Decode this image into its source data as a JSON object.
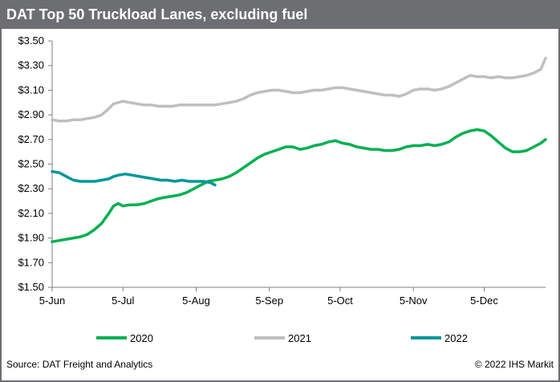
{
  "title": "DAT Top 50 Truckload Lanes, excluding fuel",
  "source": "Source: DAT Freight and Analytics",
  "copyright": "© 2022 IHS Markit",
  "chart_data": {
    "type": "line",
    "x_ticks": [
      "5-Jun",
      "5-Jul",
      "5-Aug",
      "5-Sep",
      "5-Oct",
      "5-Nov",
      "5-Dec"
    ],
    "y_ticks": [
      "$3.50",
      "$3.30",
      "$3.10",
      "$2.90",
      "$2.70",
      "$2.50",
      "$2.30",
      "$2.10",
      "$1.90",
      "$1.70",
      "$1.50"
    ],
    "ylim": [
      1.5,
      3.5
    ],
    "xlim": [
      "06-05",
      "12-31"
    ],
    "grid": false,
    "legend_position": "bottom",
    "series": [
      {
        "name": "2020",
        "color": "#00b050",
        "points": [
          [
            "06-05",
            1.87
          ],
          [
            "06-08",
            1.88
          ],
          [
            "06-11",
            1.89
          ],
          [
            "06-14",
            1.9
          ],
          [
            "06-17",
            1.91
          ],
          [
            "06-20",
            1.93
          ],
          [
            "06-23",
            1.97
          ],
          [
            "06-26",
            2.02
          ],
          [
            "06-29",
            2.1
          ],
          [
            "07-01",
            2.16
          ],
          [
            "07-03",
            2.18
          ],
          [
            "07-05",
            2.16
          ],
          [
            "07-08",
            2.17
          ],
          [
            "07-11",
            2.17
          ],
          [
            "07-14",
            2.18
          ],
          [
            "07-17",
            2.2
          ],
          [
            "07-20",
            2.22
          ],
          [
            "07-23",
            2.23
          ],
          [
            "07-26",
            2.24
          ],
          [
            "07-29",
            2.25
          ],
          [
            "08-01",
            2.27
          ],
          [
            "08-04",
            2.3
          ],
          [
            "08-07",
            2.33
          ],
          [
            "08-10",
            2.36
          ],
          [
            "08-13",
            2.37
          ],
          [
            "08-16",
            2.38
          ],
          [
            "08-19",
            2.4
          ],
          [
            "08-22",
            2.43
          ],
          [
            "08-25",
            2.47
          ],
          [
            "08-28",
            2.51
          ],
          [
            "08-31",
            2.55
          ],
          [
            "09-03",
            2.58
          ],
          [
            "09-06",
            2.6
          ],
          [
            "09-09",
            2.62
          ],
          [
            "09-12",
            2.64
          ],
          [
            "09-15",
            2.64
          ],
          [
            "09-18",
            2.62
          ],
          [
            "09-21",
            2.63
          ],
          [
            "09-24",
            2.65
          ],
          [
            "09-27",
            2.66
          ],
          [
            "09-30",
            2.68
          ],
          [
            "10-03",
            2.69
          ],
          [
            "10-06",
            2.67
          ],
          [
            "10-09",
            2.66
          ],
          [
            "10-12",
            2.64
          ],
          [
            "10-15",
            2.63
          ],
          [
            "10-18",
            2.62
          ],
          [
            "10-21",
            2.62
          ],
          [
            "10-24",
            2.61
          ],
          [
            "10-27",
            2.61
          ],
          [
            "10-30",
            2.62
          ],
          [
            "11-02",
            2.64
          ],
          [
            "11-05",
            2.65
          ],
          [
            "11-08",
            2.65
          ],
          [
            "11-11",
            2.66
          ],
          [
            "11-14",
            2.65
          ],
          [
            "11-17",
            2.66
          ],
          [
            "11-20",
            2.68
          ],
          [
            "11-23",
            2.72
          ],
          [
            "11-26",
            2.75
          ],
          [
            "11-29",
            2.77
          ],
          [
            "12-02",
            2.78
          ],
          [
            "12-05",
            2.77
          ],
          [
            "12-08",
            2.73
          ],
          [
            "12-11",
            2.68
          ],
          [
            "12-14",
            2.63
          ],
          [
            "12-17",
            2.6
          ],
          [
            "12-20",
            2.6
          ],
          [
            "12-23",
            2.61
          ],
          [
            "12-26",
            2.64
          ],
          [
            "12-29",
            2.67
          ],
          [
            "12-31",
            2.7
          ]
        ]
      },
      {
        "name": "2021",
        "color": "#bfbfbf",
        "points": [
          [
            "06-05",
            2.86
          ],
          [
            "06-08",
            2.85
          ],
          [
            "06-11",
            2.85
          ],
          [
            "06-14",
            2.86
          ],
          [
            "06-17",
            2.86
          ],
          [
            "06-20",
            2.87
          ],
          [
            "06-23",
            2.88
          ],
          [
            "06-26",
            2.9
          ],
          [
            "06-29",
            2.95
          ],
          [
            "07-01",
            2.99
          ],
          [
            "07-03",
            3.0
          ],
          [
            "07-05",
            3.01
          ],
          [
            "07-08",
            3.0
          ],
          [
            "07-11",
            2.99
          ],
          [
            "07-14",
            2.98
          ],
          [
            "07-17",
            2.98
          ],
          [
            "07-20",
            2.97
          ],
          [
            "07-23",
            2.97
          ],
          [
            "07-26",
            2.97
          ],
          [
            "07-29",
            2.98
          ],
          [
            "08-01",
            2.98
          ],
          [
            "08-04",
            2.98
          ],
          [
            "08-07",
            2.98
          ],
          [
            "08-10",
            2.98
          ],
          [
            "08-13",
            2.98
          ],
          [
            "08-16",
            2.99
          ],
          [
            "08-19",
            3.0
          ],
          [
            "08-22",
            3.01
          ],
          [
            "08-25",
            3.03
          ],
          [
            "08-28",
            3.06
          ],
          [
            "08-31",
            3.08
          ],
          [
            "09-03",
            3.09
          ],
          [
            "09-06",
            3.1
          ],
          [
            "09-09",
            3.1
          ],
          [
            "09-12",
            3.09
          ],
          [
            "09-15",
            3.08
          ],
          [
            "09-18",
            3.08
          ],
          [
            "09-21",
            3.09
          ],
          [
            "09-24",
            3.1
          ],
          [
            "09-27",
            3.1
          ],
          [
            "09-30",
            3.11
          ],
          [
            "10-03",
            3.12
          ],
          [
            "10-06",
            3.12
          ],
          [
            "10-09",
            3.11
          ],
          [
            "10-12",
            3.1
          ],
          [
            "10-15",
            3.09
          ],
          [
            "10-18",
            3.08
          ],
          [
            "10-21",
            3.07
          ],
          [
            "10-24",
            3.06
          ],
          [
            "10-27",
            3.06
          ],
          [
            "10-30",
            3.05
          ],
          [
            "11-02",
            3.07
          ],
          [
            "11-05",
            3.1
          ],
          [
            "11-08",
            3.11
          ],
          [
            "11-11",
            3.11
          ],
          [
            "11-14",
            3.1
          ],
          [
            "11-17",
            3.11
          ],
          [
            "11-20",
            3.13
          ],
          [
            "11-23",
            3.16
          ],
          [
            "11-26",
            3.19
          ],
          [
            "11-29",
            3.22
          ],
          [
            "12-02",
            3.21
          ],
          [
            "12-05",
            3.21
          ],
          [
            "12-08",
            3.2
          ],
          [
            "12-11",
            3.21
          ],
          [
            "12-14",
            3.2
          ],
          [
            "12-17",
            3.2
          ],
          [
            "12-20",
            3.21
          ],
          [
            "12-23",
            3.22
          ],
          [
            "12-26",
            3.24
          ],
          [
            "12-29",
            3.27
          ],
          [
            "12-31",
            3.36
          ]
        ]
      },
      {
        "name": "2022",
        "color": "#00969b",
        "points": [
          [
            "06-05",
            2.44
          ],
          [
            "06-08",
            2.43
          ],
          [
            "06-11",
            2.4
          ],
          [
            "06-14",
            2.37
          ],
          [
            "06-17",
            2.36
          ],
          [
            "06-20",
            2.36
          ],
          [
            "06-23",
            2.36
          ],
          [
            "06-26",
            2.37
          ],
          [
            "06-29",
            2.38
          ],
          [
            "07-01",
            2.4
          ],
          [
            "07-03",
            2.41
          ],
          [
            "07-06",
            2.42
          ],
          [
            "07-09",
            2.41
          ],
          [
            "07-12",
            2.4
          ],
          [
            "07-15",
            2.39
          ],
          [
            "07-18",
            2.38
          ],
          [
            "07-21",
            2.37
          ],
          [
            "07-24",
            2.37
          ],
          [
            "07-27",
            2.36
          ],
          [
            "07-30",
            2.37
          ],
          [
            "08-02",
            2.36
          ],
          [
            "08-05",
            2.36
          ],
          [
            "08-08",
            2.36
          ],
          [
            "08-11",
            2.35
          ],
          [
            "08-13",
            2.33
          ]
        ]
      }
    ]
  }
}
